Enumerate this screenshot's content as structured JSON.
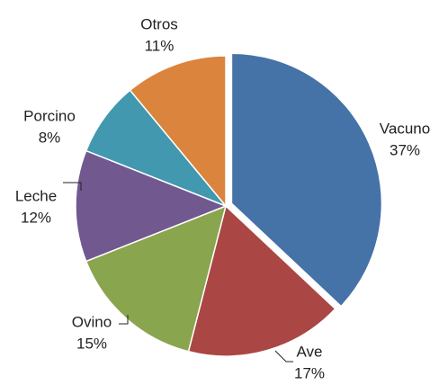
{
  "chart_data": {
    "type": "pie",
    "categories": [
      "Vacuno",
      "Ave",
      "Ovino",
      "Leche",
      "Porcino",
      "Otros"
    ],
    "values": [
      37,
      17,
      15,
      12,
      8,
      11
    ],
    "value_labels": [
      "37%",
      "17%",
      "15%",
      "12%",
      "8%",
      "11%"
    ],
    "colors": [
      "#4572a7",
      "#aa4643",
      "#89a54e",
      "#71588f",
      "#4198af",
      "#db843d"
    ]
  }
}
